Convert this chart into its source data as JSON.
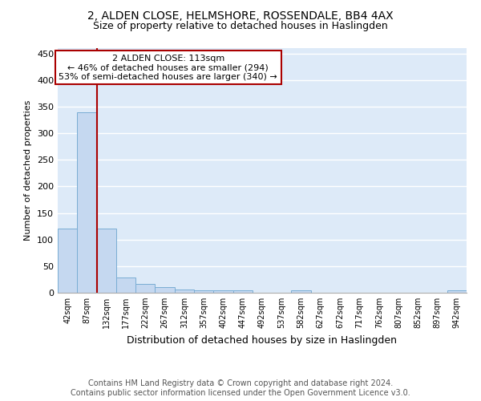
{
  "title1": "2, ALDEN CLOSE, HELMSHORE, ROSSENDALE, BB4 4AX",
  "title2": "Size of property relative to detached houses in Haslingden",
  "xlabel": "Distribution of detached houses by size in Haslingden",
  "ylabel": "Number of detached properties",
  "footer1": "Contains HM Land Registry data © Crown copyright and database right 2024.",
  "footer2": "Contains public sector information licensed under the Open Government Licence v3.0.",
  "annotation_line1": "2 ALDEN CLOSE: 113sqm",
  "annotation_line2": "← 46% of detached houses are smaller (294)",
  "annotation_line3": "53% of semi-detached houses are larger (340) →",
  "bar_labels": [
    "42sqm",
    "87sqm",
    "132sqm",
    "177sqm",
    "222sqm",
    "267sqm",
    "312sqm",
    "357sqm",
    "402sqm",
    "447sqm",
    "492sqm",
    "537sqm",
    "582sqm",
    "627sqm",
    "672sqm",
    "717sqm",
    "762sqm",
    "807sqm",
    "852sqm",
    "897sqm",
    "942sqm"
  ],
  "bar_values": [
    120,
    340,
    120,
    28,
    17,
    10,
    6,
    4,
    4,
    4,
    0,
    0,
    4,
    0,
    0,
    0,
    0,
    0,
    0,
    0,
    4
  ],
  "bar_color": "#c5d8f0",
  "bar_edge_color": "#7aadd4",
  "red_line_x": 1.5,
  "ylim": [
    0,
    460
  ],
  "yticks": [
    0,
    50,
    100,
    150,
    200,
    250,
    300,
    350,
    400,
    450
  ],
  "background_color": "#ddeaf8",
  "annotation_box_color": "#ffffff",
  "annotation_box_edge": "#aa0000",
  "red_line_color": "#aa0000",
  "grid_color": "#ffffff",
  "title1_fontsize": 10,
  "title2_fontsize": 9,
  "xlabel_fontsize": 9,
  "ylabel_fontsize": 8,
  "footer_fontsize": 7
}
